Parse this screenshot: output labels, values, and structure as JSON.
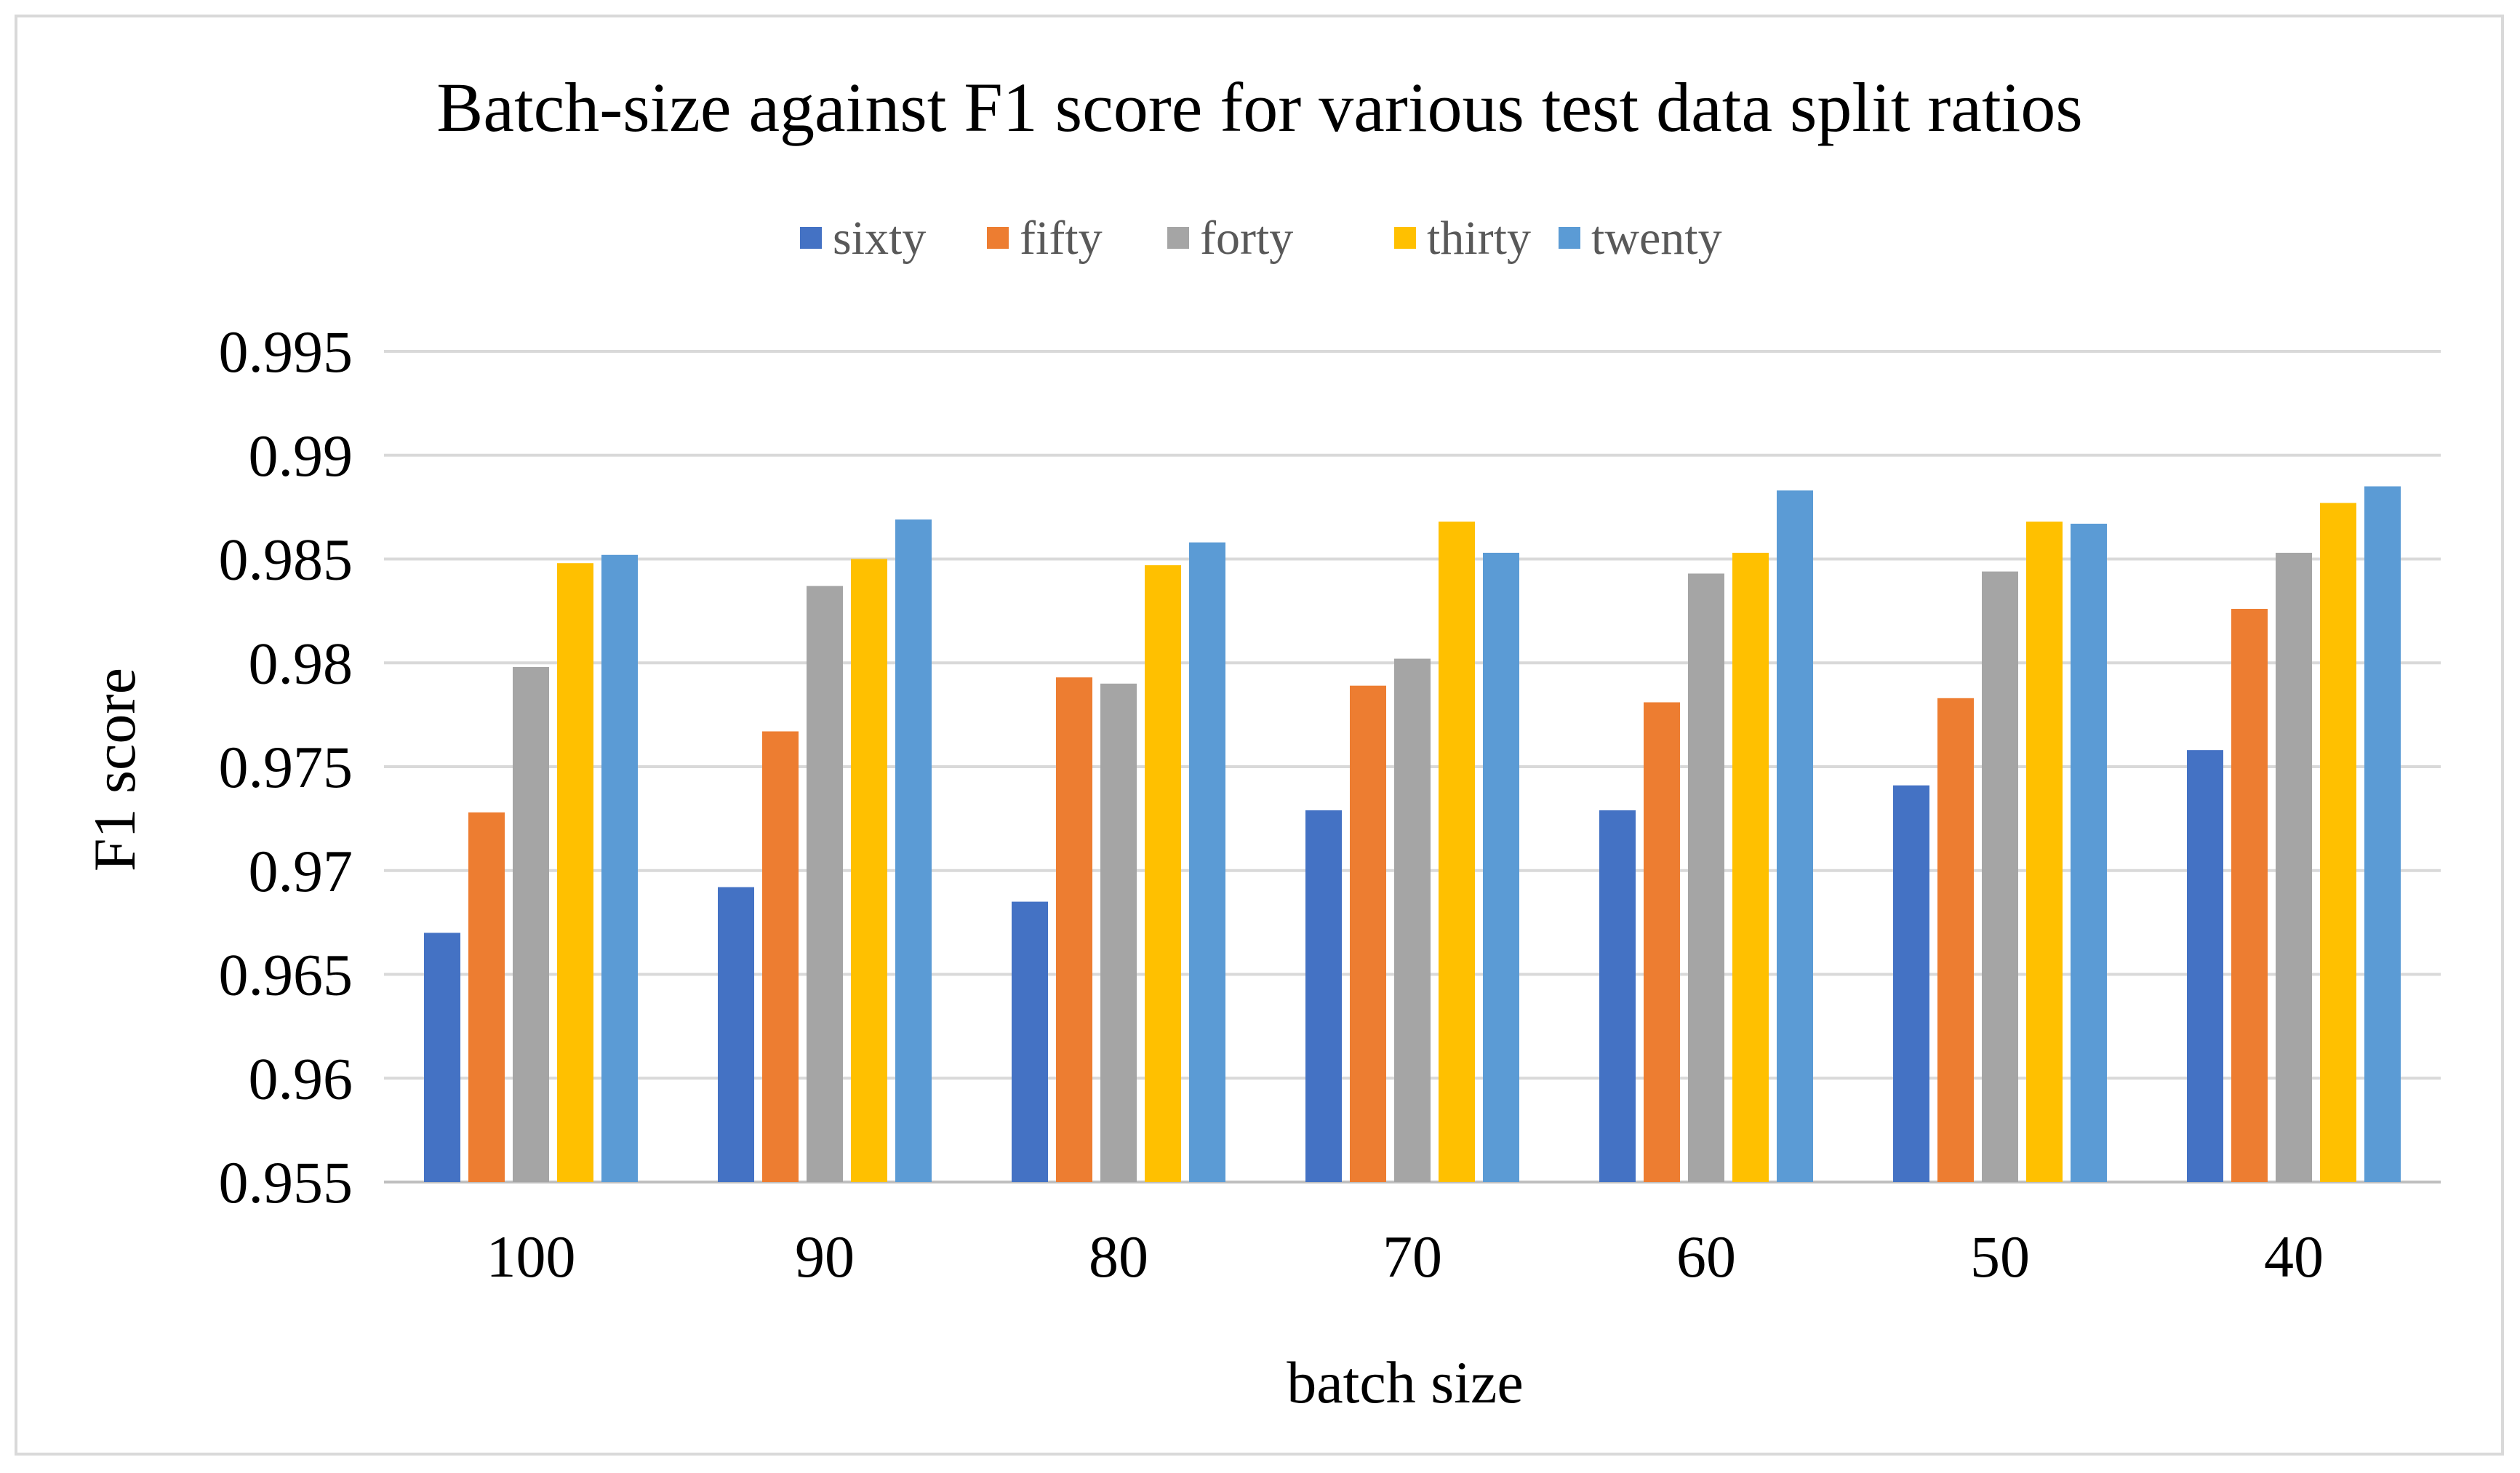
{
  "chart_data": {
    "type": "bar",
    "title": "Batch-size against F1 score for various test data split ratios",
    "xlabel": "batch size",
    "ylabel": "F1 score",
    "ylim": [
      0.955,
      0.995
    ],
    "ytick_step": 0.005,
    "ytick_labels": [
      "0.955",
      "0.96",
      "0.965",
      "0.97",
      "0.975",
      "0.98",
      "0.985",
      "0.99",
      "0.995"
    ],
    "grid": true,
    "legend_position": "top",
    "categories": [
      "100",
      "90",
      "80",
      "70",
      "60",
      "50",
      "40"
    ],
    "series": [
      {
        "name": "sixty",
        "color": "#4472C4",
        "values": [
          0.967,
          0.9692,
          0.9685,
          0.9729,
          0.9729,
          0.9741,
          0.9758
        ]
      },
      {
        "name": "fifty",
        "color": "#ED7D31",
        "values": [
          0.9728,
          0.9767,
          0.9793,
          0.9789,
          0.9781,
          0.9783,
          0.9826
        ]
      },
      {
        "name": "forty",
        "color": "#A5A5A5",
        "values": [
          0.9798,
          0.9837,
          0.979,
          0.9802,
          0.9843,
          0.9844,
          0.9853
        ]
      },
      {
        "name": "thirty",
        "color": "#FFC000",
        "values": [
          0.9848,
          0.985,
          0.9847,
          0.9868,
          0.9853,
          0.9868,
          0.9877
        ]
      },
      {
        "name": "twenty",
        "color": "#5B9BD5",
        "values": [
          0.9852,
          0.9869,
          0.9858,
          0.9853,
          0.9883,
          0.9867,
          0.9885
        ]
      }
    ]
  }
}
